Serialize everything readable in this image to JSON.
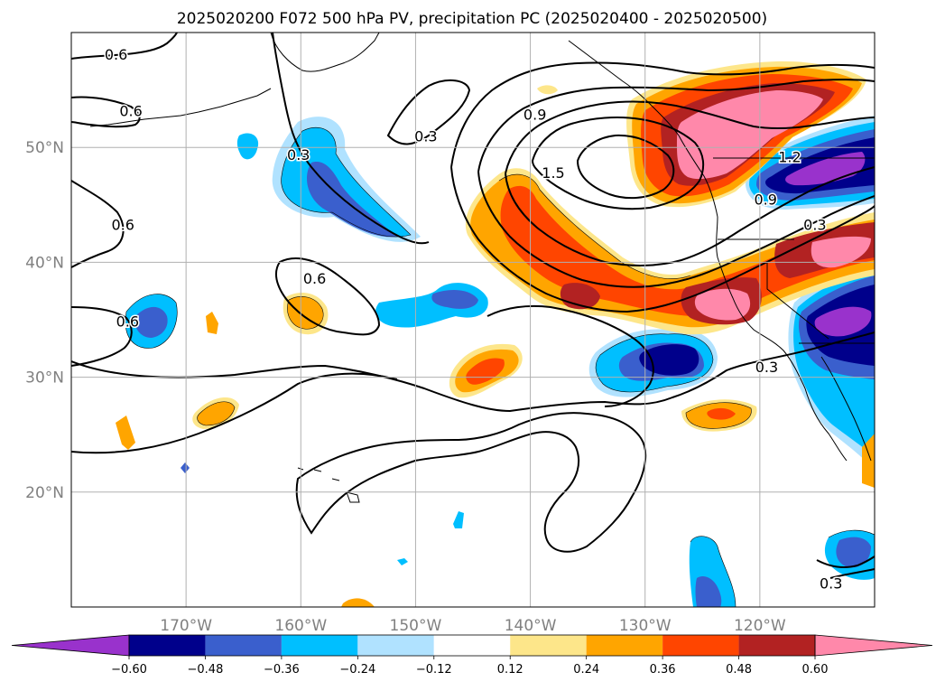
{
  "title": "2025020200 F072 500 hPa PV, precipitation PC (2025020400 - 2025020500)",
  "map": {
    "lon_range": [
      -180,
      -110
    ],
    "lat_range": [
      10,
      60
    ],
    "lat_ticks": [
      {
        "value": 20,
        "label": "20°N"
      },
      {
        "value": 30,
        "label": "30°N"
      },
      {
        "value": 40,
        "label": "40°N"
      },
      {
        "value": 50,
        "label": "50°N"
      }
    ],
    "lon_ticks": [
      {
        "value": -170,
        "label": "170°W"
      },
      {
        "value": -160,
        "label": "160°W"
      },
      {
        "value": -150,
        "label": "150°W"
      },
      {
        "value": -140,
        "label": "140°W"
      },
      {
        "value": -130,
        "label": "130°W"
      },
      {
        "value": -120,
        "label": "120°W"
      }
    ],
    "grid": true,
    "contour_labels": [
      {
        "text": "0.6",
        "lon": -176.1,
        "lat": 58.1
      },
      {
        "text": "0.6",
        "lon": -174.8,
        "lat": 53.2
      },
      {
        "text": "0.6",
        "lon": -175.5,
        "lat": 43.3
      },
      {
        "text": "0.3",
        "lon": -160.2,
        "lat": 49.4
      },
      {
        "text": "0.3",
        "lon": -149.1,
        "lat": 51.0
      },
      {
        "text": "0.6",
        "lon": -158.8,
        "lat": 38.6
      },
      {
        "text": "0.6",
        "lon": -175.1,
        "lat": 34.9
      },
      {
        "text": "0.9",
        "lon": -139.6,
        "lat": 52.9
      },
      {
        "text": "1.5",
        "lon": -138.0,
        "lat": 47.8
      },
      {
        "text": "1.2",
        "lon": -117.4,
        "lat": 49.2
      },
      {
        "text": "0.9",
        "lon": -119.5,
        "lat": 45.5
      },
      {
        "text": "0.3",
        "lon": -115.2,
        "lat": 43.3
      },
      {
        "text": "0.3",
        "lon": -119.4,
        "lat": 30.9
      },
      {
        "text": "0.3",
        "lon": -113.8,
        "lat": 12.1
      }
    ]
  },
  "colorbar": {
    "bounds": [
      -0.6,
      -0.48,
      -0.36,
      -0.24,
      -0.12,
      0.12,
      0.24,
      0.36,
      0.48,
      0.6
    ],
    "tick_labels": [
      "−0.60",
      "−0.48",
      "−0.36",
      "−0.24",
      "−0.12",
      "0.12",
      "0.24",
      "0.36",
      "0.48",
      "0.60"
    ],
    "colors": [
      "#9932cc",
      "#00008b",
      "#3a5fcd",
      "#00bfff",
      "#b0e2ff",
      "#ffffff",
      "#fde68a",
      "#ffa500",
      "#ff4500",
      "#b22222",
      "#ff88aa"
    ],
    "extend": "both"
  }
}
